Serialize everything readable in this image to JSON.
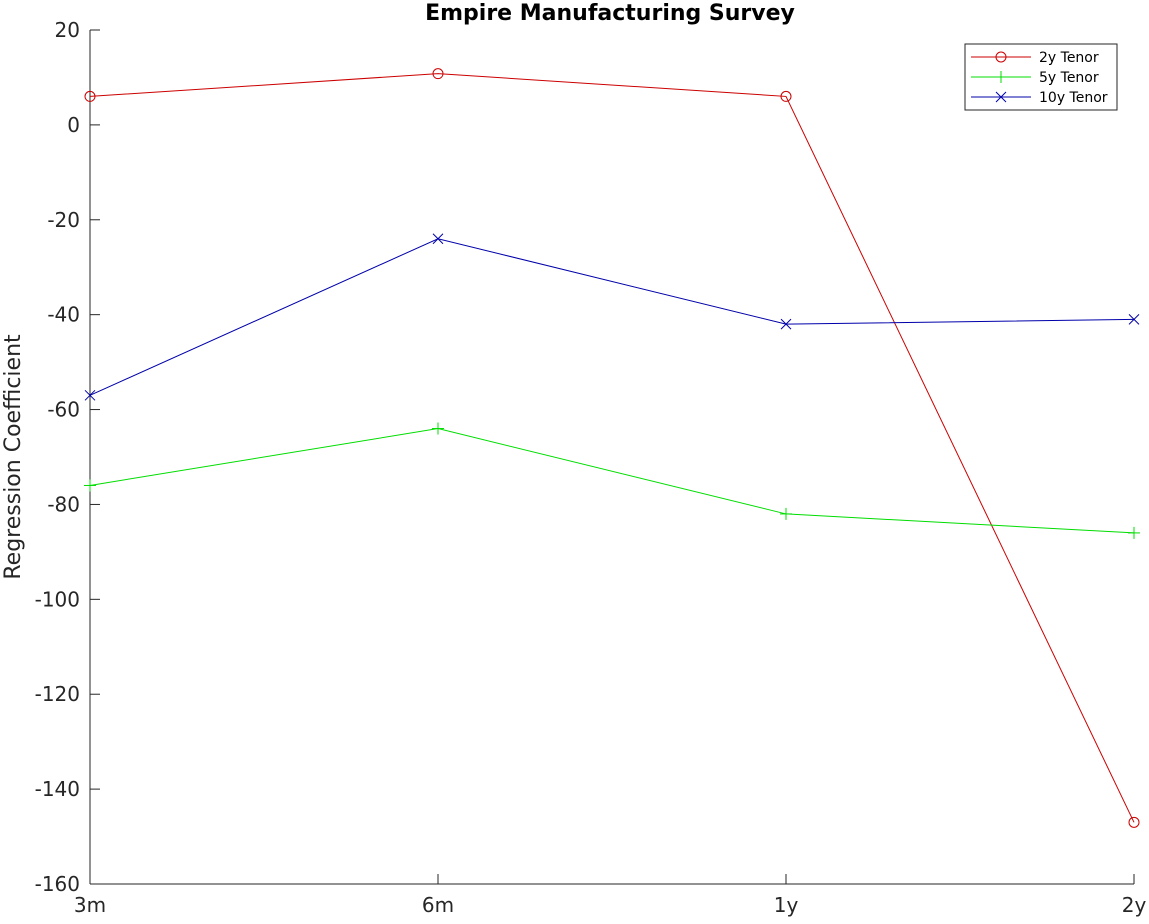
{
  "chart_data": {
    "type": "line",
    "title": "Empire Manufacturing Survey",
    "xlabel": "",
    "ylabel": "Regression Coefficient",
    "categories": [
      "3m",
      "6m",
      "1y",
      "2y"
    ],
    "ylim": [
      -160,
      20
    ],
    "yticks": [
      20,
      0,
      -20,
      -40,
      -60,
      -80,
      -100,
      -120,
      -140,
      -160
    ],
    "ytick_labels": [
      "20",
      "0",
      "-20",
      "-40",
      "-60",
      "-80",
      "-100",
      "-120",
      "-140",
      "-160"
    ],
    "grid": false,
    "legend_position": "top-right",
    "series": [
      {
        "name": "2y Tenor",
        "color": "#cc0000",
        "marker": "circle",
        "values": [
          6,
          10.8,
          6,
          -147
        ]
      },
      {
        "name": "5y Tenor",
        "color": "#00dd00",
        "marker": "plus",
        "values": [
          -76,
          -64,
          -82,
          -86
        ]
      },
      {
        "name": "10y Tenor",
        "color": "#0000aa",
        "marker": "x",
        "values": [
          -57,
          -24,
          -42,
          -41
        ]
      }
    ]
  }
}
